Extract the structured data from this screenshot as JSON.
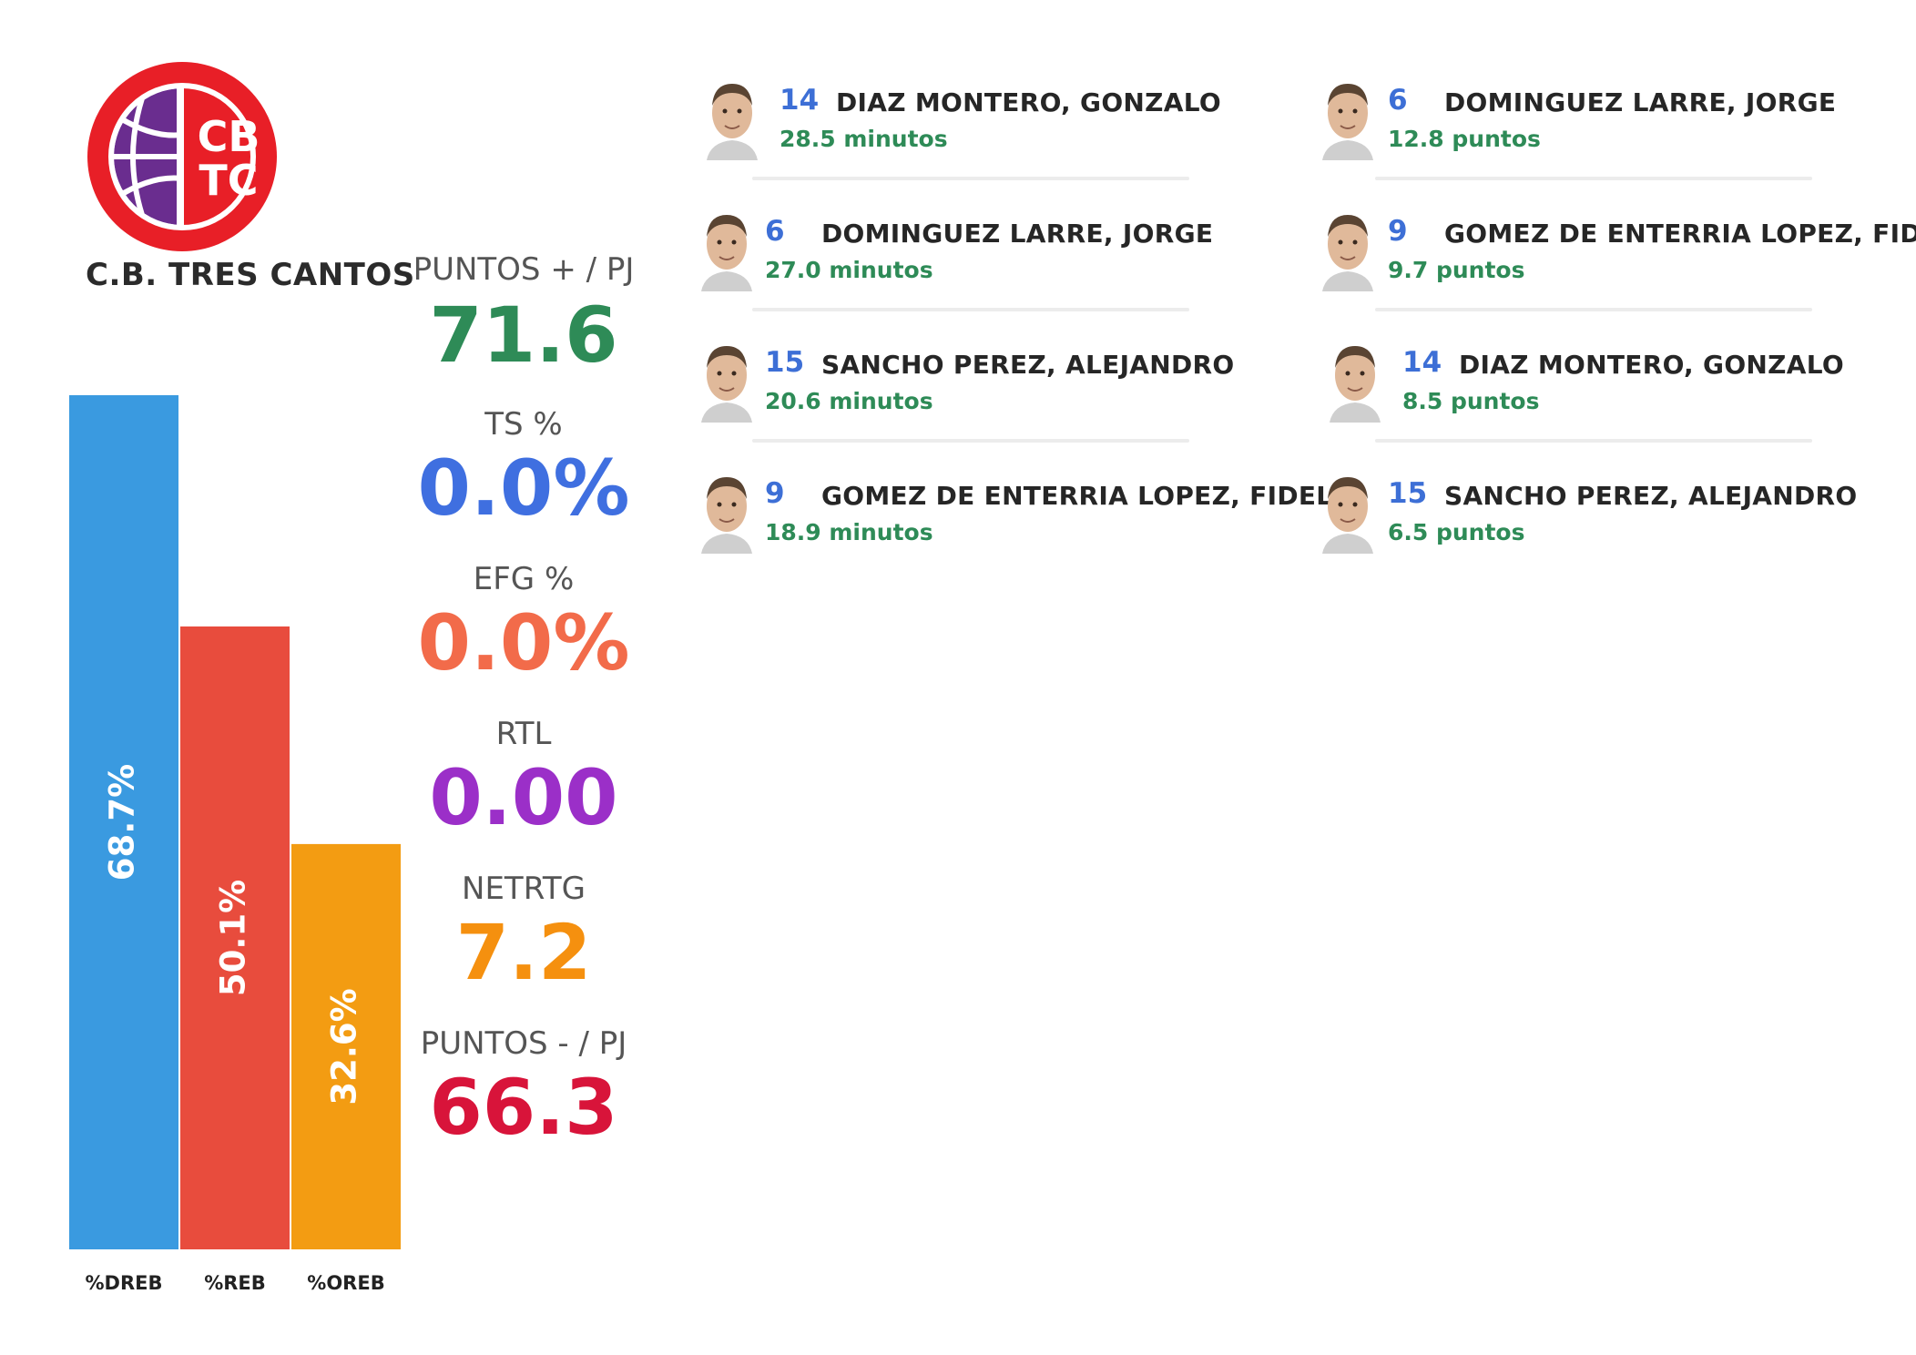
{
  "team": {
    "name": "C.B. TRES CANTOS",
    "logo_letters_top": "CB",
    "logo_letters_bottom": "TC",
    "logo_colors": {
      "ring": "#e81f27",
      "ball": "#6a2d8f",
      "text": "#ffffff"
    }
  },
  "metrics": [
    {
      "label": "PUNTOS + / PJ",
      "value": "71.6",
      "color": "#2e8b57"
    },
    {
      "label": "TS %",
      "value": "0.0%",
      "color": "#3f6fe0"
    },
    {
      "label": "EFG %",
      "value": "0.0%",
      "color": "#f26b4a"
    },
    {
      "label": "RTL",
      "value": "0.00",
      "color": "#9b2fc8"
    },
    {
      "label": "NETRTG",
      "value": "7.2",
      "color": "#f5900f"
    },
    {
      "label": "PUNTOS - / PJ",
      "value": "66.3",
      "color": "#d8143a"
    }
  ],
  "chart_data": {
    "type": "bar",
    "categories": [
      "%DREB",
      "%REB",
      "%OREB"
    ],
    "values": [
      68.7,
      50.1,
      32.6
    ],
    "value_labels": [
      "68.7%",
      "50.1%",
      "32.6%"
    ],
    "colors": [
      "#3a9ae0",
      "#e84c3d",
      "#f39c12"
    ],
    "ylim": [
      0,
      68.7
    ],
    "grid": false,
    "legend": "none"
  },
  "minutes_leaders": [
    {
      "number": "14",
      "name": "DIAZ MONTERO, GONZALO",
      "stat": "28.5 minutos",
      "avatar": "player-photo-diaz-montero"
    },
    {
      "number": "6",
      "name": "DOMINGUEZ LARRE, JORGE",
      "stat": "27.0 minutos",
      "avatar": "player-photo-dominguez-larre"
    },
    {
      "number": "15",
      "name": "SANCHO PEREZ, ALEJANDRO",
      "stat": "20.6 minutos",
      "avatar": "player-photo-sancho-perez"
    },
    {
      "number": "9",
      "name": "GOMEZ DE ENTERRIA LOPEZ, FIDEL",
      "stat": "18.9 minutos",
      "avatar": "player-photo-gomez-enterria"
    }
  ],
  "points_leaders": [
    {
      "number": "6",
      "name": "DOMINGUEZ LARRE, JORGE",
      "stat": "12.8 puntos",
      "avatar": "player-photo-dominguez-larre"
    },
    {
      "number": "9",
      "name": "GOMEZ DE ENTERRIA LOPEZ, FIDEL",
      "stat": "9.7 puntos",
      "avatar": "player-photo-gomez-enterria"
    },
    {
      "number": "14",
      "name": "DIAZ MONTERO, GONZALO",
      "stat": "8.5 puntos",
      "avatar": "player-photo-diaz-montero"
    },
    {
      "number": "15",
      "name": "SANCHO PEREZ, ALEJANDRO",
      "stat": "6.5 puntos",
      "avatar": "player-photo-sancho-perez"
    }
  ]
}
